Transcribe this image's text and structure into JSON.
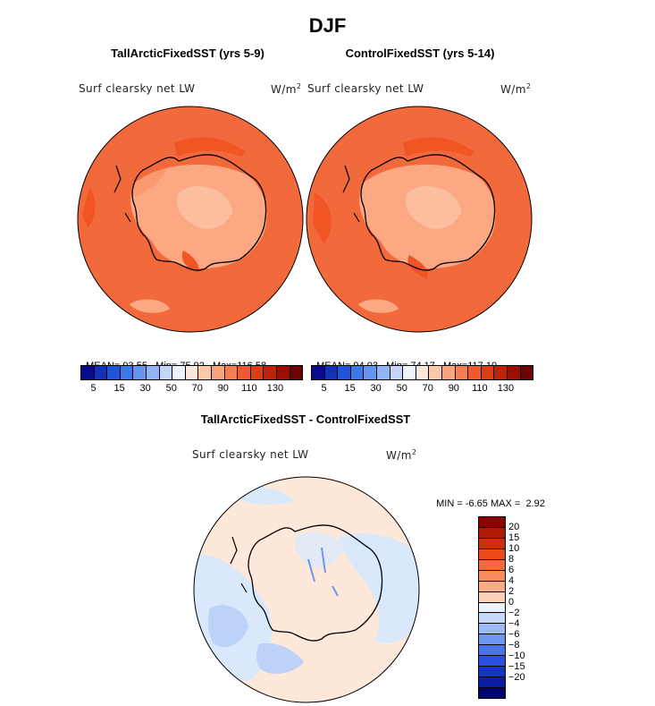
{
  "season_title": "DJF",
  "panels": [
    {
      "title": "TallArcticFixedSST (yrs 5-9)",
      "variable": "Surf clearsky net LW",
      "units": "W/m",
      "units_exp": "2",
      "mean_label": "MEAN=",
      "mean": "93.55",
      "min_label": "Min=",
      "min": "75.92",
      "max_label": "Max=",
      "max": "116.58"
    },
    {
      "title": "ControlFixedSST (yrs 5-14)",
      "variable": "Surf clearsky net LW",
      "units": "W/m",
      "units_exp": "2",
      "mean_label": "MEAN=",
      "mean": "94.03",
      "min_label": "Min=",
      "min": "74.17",
      "max_label": "Max=",
      "max": "117.10"
    }
  ],
  "abs_colorbar": {
    "colors": [
      "#0a0a8c",
      "#1530b8",
      "#1f55d8",
      "#3a78ec",
      "#6496f0",
      "#93b4f4",
      "#c3d6fa",
      "#eef3fd",
      "#fde8dc",
      "#fcc8aa",
      "#f9a47a",
      "#f67e50",
      "#f05a2e",
      "#de3c14",
      "#c0220a",
      "#9b0e04",
      "#6e0202"
    ],
    "labels": [
      "5",
      "15",
      "30",
      "50",
      "70",
      "90",
      "110",
      "130"
    ]
  },
  "diff_panel": {
    "title": "TallArcticFixedSST - ControlFixedSST",
    "variable": "Surf clearsky net LW",
    "units": "W/m",
    "units_exp": "2",
    "min_label": "MIN =",
    "min": "-6.65",
    "max_label": "MAX =",
    "max": "2.92"
  },
  "diff_colorbar": {
    "colors": [
      "#8c0000",
      "#b01a04",
      "#cf2e0a",
      "#ee4a1c",
      "#f56a38",
      "#f98c5c",
      "#fbab86",
      "#fdd0b8",
      "#eaf3fd",
      "#c6d9fb",
      "#9bbaf6",
      "#6f97f0",
      "#4a74e8",
      "#2a52dc",
      "#1535c4",
      "#0a1ea0",
      "#03046e"
    ],
    "labels": [
      "20",
      "15",
      "10",
      "8",
      "6",
      "4",
      "2",
      "0",
      "−2",
      "−4",
      "−6",
      "−8",
      "−10",
      "−15",
      "−20"
    ]
  },
  "colors": {
    "ocean_abs": "#f26a3c",
    "land_abs": "#fca882",
    "band_abs": "#f25524",
    "ocean_diff_neg": "#d9e8fb",
    "land_diff_pos": "#fde8da"
  }
}
